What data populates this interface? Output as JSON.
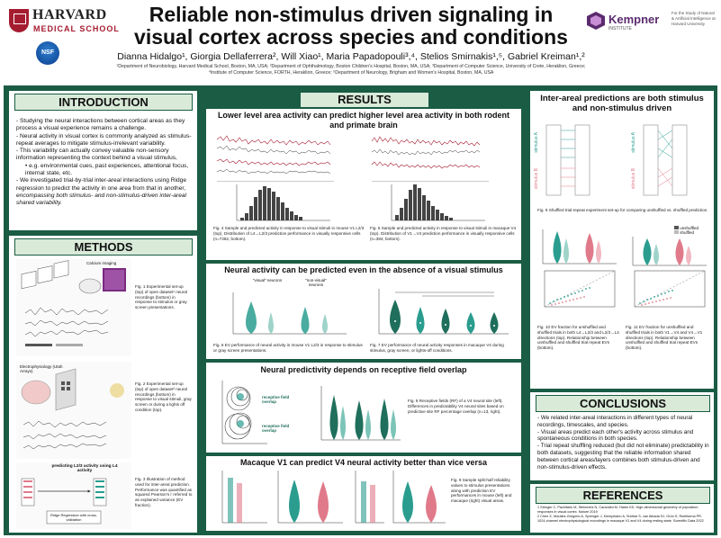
{
  "header": {
    "institution": "HARVARD",
    "school": "MEDICAL SCHOOL",
    "funder": "NSF",
    "title_line1": "Reliable non-stimulus driven signaling in",
    "title_line2": "visual cortex across species and conditions",
    "authors": "Dianna Hidalgo¹, Giorgia Dellaferrera², Will Xiao¹, Maria Papadopouli³,⁴, Stelios Smirnakis¹,⁵, Gabriel Kreiman¹,²",
    "affiliations_line1": "¹Department of Neurobiology, Harvard Medical School, Boston, MA, USA; ²Department of Ophthalmology, Boston Children's Hospital, Boston, MA, USA; ³Department of Computer Science, University of Crete, Heraklion, Greece;",
    "affiliations_line2": "⁴Institute of Computer Science, FORTH, Heraklion, Greece; ⁵Department of Neurology, Brigham and Women's Hospital, Boston, MA, USA",
    "partner": "Kempner",
    "partner_sub": "INSTITUTE",
    "partner_side": "For the Study of Natural & Artificial Intelligence at Harvard University"
  },
  "introduction": {
    "heading": "INTRODUCTION",
    "bullets": [
      "Studying the neural interactions between cortical areas as they process a visual experience remains a challenge.",
      "Neural activity in visual cortex is commonly analyzed as stimulus-repeat averages to mitigate stimulus-irrelevant variability.",
      "This variability can actually convey valuable non-sensory information representing the context behind a visual stimulus,",
      "We investigated trial-by-trial inter-areal interactions using Ridge regression to predict the activity in one area from that in another,"
    ],
    "sub_bullet": "e.g. environmental cues, past experiences, attentional focus, internal state, etc.",
    "emphasis": "encompassing both stimulus- and non-stimulus-driven inter-areal shared variability."
  },
  "methods": {
    "heading": "METHODS",
    "cap1": "Fig. 1 Experimental set-up (top) of open dataset¹ neural recordings (bottom) in response to stimulus or gray screen presentations.",
    "cap2": "Fig. 2 Experimental set-up (top) of open dataset² neural recordings (bottom) in response to visual stimuli, gray screen or during a lights off condition (top).",
    "cap3": "Fig. 3 Illustration of method used for inter-areal prediction. Performance was quantified as squared Pearson's r referred to as explained variance (EV fraction).",
    "label_a": "Calcium imaging",
    "label_b": "Electrophysiology (Utah Arrays)",
    "label_c": "predicting L2/3 activity using L4 activity",
    "label_d": "Ridge Regression with cross-validation"
  },
  "results": {
    "heading": "RESULTS",
    "sec1_title": "Lower level area activity can predict higher level area activity in both rodent and primate brain",
    "fig4_cap": "Fig. 4 Sample and predicted activity in response to visual stimuli in mouse V1 L2/3 (top). Distribution of L4→L2/3 prediction performance in visually responsive cells (n=7282, bottom).",
    "fig5_cap": "Fig. 5 Sample and predicted activity in response to visual stimuli in macaque V4 (top). Distribution of V1→V4 prediction performance in visually responsive cells (n=384, bottom).",
    "sec2_title": "Neural activity can be predicted even in the absence of a visual stimulus",
    "fig6_cap": "Fig. 6 EV performance of neural activity in mouse V1 L2/3 in response to stimulus or gray screen presentations.",
    "fig7_cap": "Fig. 7 EV performance of neural activity responses in macaque V4 during stimulus, gray screen, or lights-off conditions.",
    "visual_label": "\"visual\" neurons",
    "nonvisual_label": "\"non-visual\" neurons",
    "sec3_title": "Neural predictivity depends on receptive field overlap",
    "fig8_cap": "Fig. 8 Receptive fields (RF) of a V4 neural site (left). Differences in predictability V4 neural sites based on predictive site RF percentage overlap (n=13, right).",
    "rf_high": "receptive field overlap",
    "rf_low": "receptive field overlap",
    "sec4_title": "Macaque V1 can predict V4 neural activity better than vice versa",
    "fig9_cap": "Fig. 9 Sample split-half reliability values to stimulus presentations along with prediction EV performances in mouse (left) and macaque (right) visual areas."
  },
  "right": {
    "heading": "Inter-areal predictions are both stimulus and non-stimulus driven",
    "fig_cap": "Fig. 9 Shuffled trial-repeat experiment set-up for comparing unshuffled vs. shuffled prediction.",
    "fig10_cap": "Fig. 10 EV fraction for unshuffled and shuffled trials in both L4→L2/3 and L2/3→L4 directions (top). Relationship between unshuffled and shuffled trial repeat EVs (bottom).",
    "fig11_cap": "Fig. 11 EV fraction for unshuffled and shuffled trials in both V1→V4 and V4→V1 directions (top). Relationship between unshuffled and shuffled trial repeat EVs (bottom).",
    "stimulus_a": "stimulus A",
    "stimulus_b": "stimulus B",
    "legend_unshuffled": "unshuffled",
    "legend_shuffled": "shuffled"
  },
  "conclusions": {
    "heading": "CONCLUSIONS",
    "bullets": [
      "We related inter-areal interactions in different types of neural recordings, timescales, and species.",
      "Visual areas predict each other's activity across stimulus and spontaneous conditions in both species.",
      "Trial repeat shuffling reduced (but did not eliminate) predictability in both datasets, suggesting that the reliable information shared between cortical areas/layers combines both stimulus-driven and non-stimulus-driven effects."
    ]
  },
  "references": {
    "heading": "REFERENCES",
    "items": [
      "1 Stringer C, Pachitariu M, Steinmetz N, Carandini M, Harris KD. High-dimensional geometry of population responses in visual cortex. Nature 2019",
      "2 Chen X, Morales-Gregorio A, Sprenger J, Kleinjohann A, Sridhar S, van Albada SJ, Grün S, Roelfsema PR. 1024-channel electrophysiological recordings in macaque V1 and V4 during resting state. Scientific Data 2022"
    ]
  },
  "colors": {
    "frame": "#1a5c44",
    "header_box": "#d9ead9",
    "crimson": "#a51c30",
    "teal": "#2a9d8f",
    "pink": "#e07a8a"
  }
}
